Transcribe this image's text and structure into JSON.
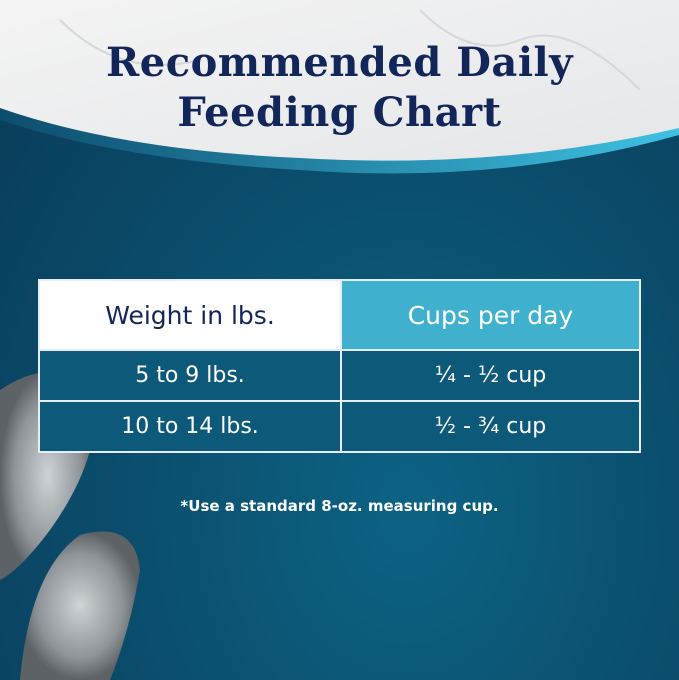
{
  "title_lines": [
    "Recommended Daily",
    "Feeding Chart"
  ],
  "table": {
    "headers": [
      "Weight in lbs.",
      "Cups per day"
    ],
    "rows": [
      [
        "5 to 9 lbs.",
        "¼ - ½ cup"
      ],
      [
        "10 to 14 lbs.",
        "½ - ¾ cup"
      ]
    ]
  },
  "footnote": "*Use a standard 8-oz. measuring cup.",
  "colors": {
    "title": "#13265a",
    "header_accent": "#3fb1cf",
    "row_bg": "#0d5979",
    "background": "#0b4f6e"
  }
}
